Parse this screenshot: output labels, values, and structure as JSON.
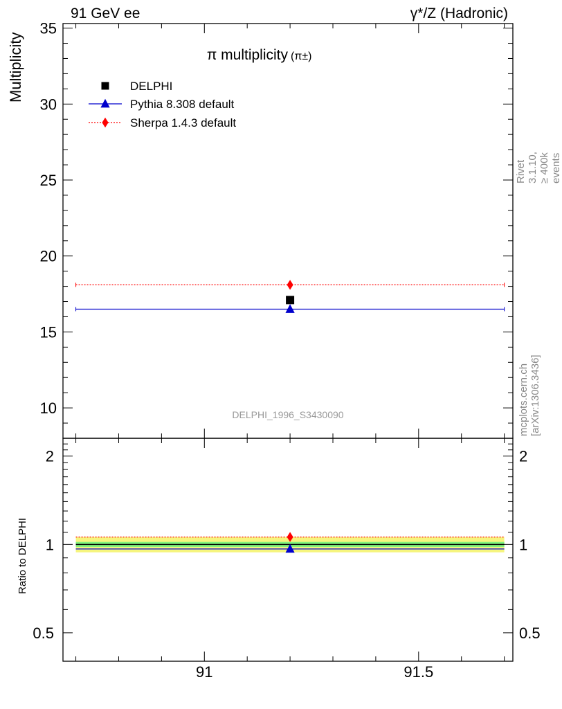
{
  "header": {
    "left": "91 GeV ee",
    "right": "γ*/Z (Hadronic)"
  },
  "side": {
    "rivet": "Rivet 3.1.10, ≥ 400k events",
    "mcplots": "mcplots.cern.ch [arXiv:1306.3436]"
  },
  "colors": {
    "data": "#000000",
    "pythia": "#0000cc",
    "sherpa": "#ff0000",
    "band_outer": "#f6f57e",
    "band_inner": "#82f27c"
  },
  "chart_data": [
    {
      "type": "scatter",
      "panel": "main",
      "title": "π multiplicity",
      "title_suffix": "(π±)",
      "ylabel": "Multiplicity",
      "xlabel": "",
      "xlim": [
        90.67,
        91.72
      ],
      "ylim": [
        8,
        35.3
      ],
      "yticks": [
        10,
        15,
        20,
        25,
        30,
        35
      ],
      "yticklabels": [
        "10",
        "15",
        "20",
        "25",
        "30",
        "35"
      ],
      "analysis_label": "DELPHI_1996_S3430090",
      "legend": {
        "position": "top-left",
        "entries": [
          {
            "label": "DELPHI",
            "marker": "square",
            "color": "#000000"
          },
          {
            "label": "Pythia 8.308 default",
            "marker": "triangle",
            "color": "#0000cc"
          },
          {
            "label": "Sherpa 1.4.3 default",
            "marker": "diamond",
            "color": "#ff0000"
          }
        ]
      },
      "series": [
        {
          "name": "DELPHI",
          "x": [
            91.2
          ],
          "y": [
            17.1
          ],
          "style": "marker"
        },
        {
          "name": "Pythia 8.308 default",
          "x": [
            91.2
          ],
          "y": [
            16.5
          ],
          "xrange": [
            90.7,
            91.7
          ],
          "style": "line"
        },
        {
          "name": "Sherpa 1.4.3 default",
          "x": [
            91.2
          ],
          "y": [
            18.1
          ],
          "xrange": [
            90.7,
            91.7
          ],
          "style": "dotted"
        }
      ]
    },
    {
      "type": "scatter",
      "panel": "ratio",
      "ylabel": "Ratio to DELPHI",
      "xlabel": "",
      "xlim": [
        90.67,
        91.72
      ],
      "ylim": [
        0.4,
        2.3
      ],
      "yscale": "log",
      "yticks": [
        0.5,
        1,
        2
      ],
      "yticklabels": [
        "0.5",
        "1",
        "2"
      ],
      "xticks": [
        91,
        91.5
      ],
      "xticklabels": [
        "91",
        "91.5"
      ],
      "bands": {
        "outer": [
          0.94,
          1.06
        ],
        "inner": [
          0.98,
          1.02
        ]
      },
      "series": [
        {
          "name": "DELPHI",
          "x": [
            91.2
          ],
          "y": [
            1.0
          ],
          "style": "line"
        },
        {
          "name": "Pythia 8.308 default",
          "x": [
            91.2
          ],
          "y": [
            0.965
          ],
          "xrange": [
            90.7,
            91.7
          ],
          "style": "line"
        },
        {
          "name": "Sherpa 1.4.3 default",
          "x": [
            91.2
          ],
          "y": [
            1.06
          ],
          "xrange": [
            90.7,
            91.7
          ],
          "style": "dotted"
        }
      ]
    }
  ]
}
